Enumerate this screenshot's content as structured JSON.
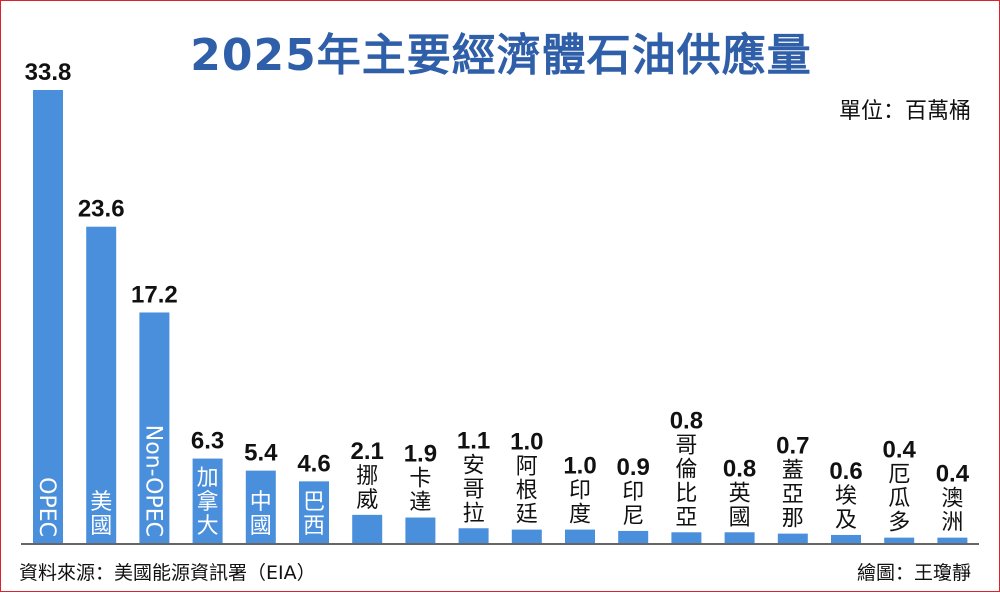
{
  "chart_data": {
    "type": "bar",
    "title": "2025年主要經濟體石油供應量",
    "unit_label": "單位：百萬桶",
    "categories": [
      "OPEC",
      "美國",
      "Non-OPEC",
      "加拿大",
      "中國",
      "巴西",
      "挪威",
      "卡達",
      "安哥拉",
      "阿根廷",
      "印度",
      "印尼",
      "哥倫比亞",
      "英國",
      "蓋亞那",
      "埃及",
      "厄瓜多",
      "澳洲"
    ],
    "values": [
      33.8,
      23.6,
      17.2,
      6.3,
      5.4,
      4.6,
      2.1,
      1.9,
      1.1,
      1.0,
      1.0,
      0.9,
      0.8,
      0.8,
      0.7,
      0.6,
      0.4,
      0.4
    ],
    "value_labels": [
      "33.8",
      "23.6",
      "17.2",
      "6.3",
      "5.4",
      "4.6",
      "2.1",
      "1.9",
      "1.1",
      "1.0",
      "1.0",
      "0.9",
      "0.8",
      "0.8",
      "0.7",
      "0.6",
      "0.4",
      "0.4"
    ],
    "ylim": [
      0,
      35
    ],
    "bar_color": "#4a8fdc",
    "title_color": "#2f5fa8",
    "grid": false
  },
  "footer": {
    "source": "資料來源：美國能源資訊署（EIA）",
    "credit": "繪圖：王瓊靜"
  },
  "colors": {
    "border": "#d9232f"
  }
}
